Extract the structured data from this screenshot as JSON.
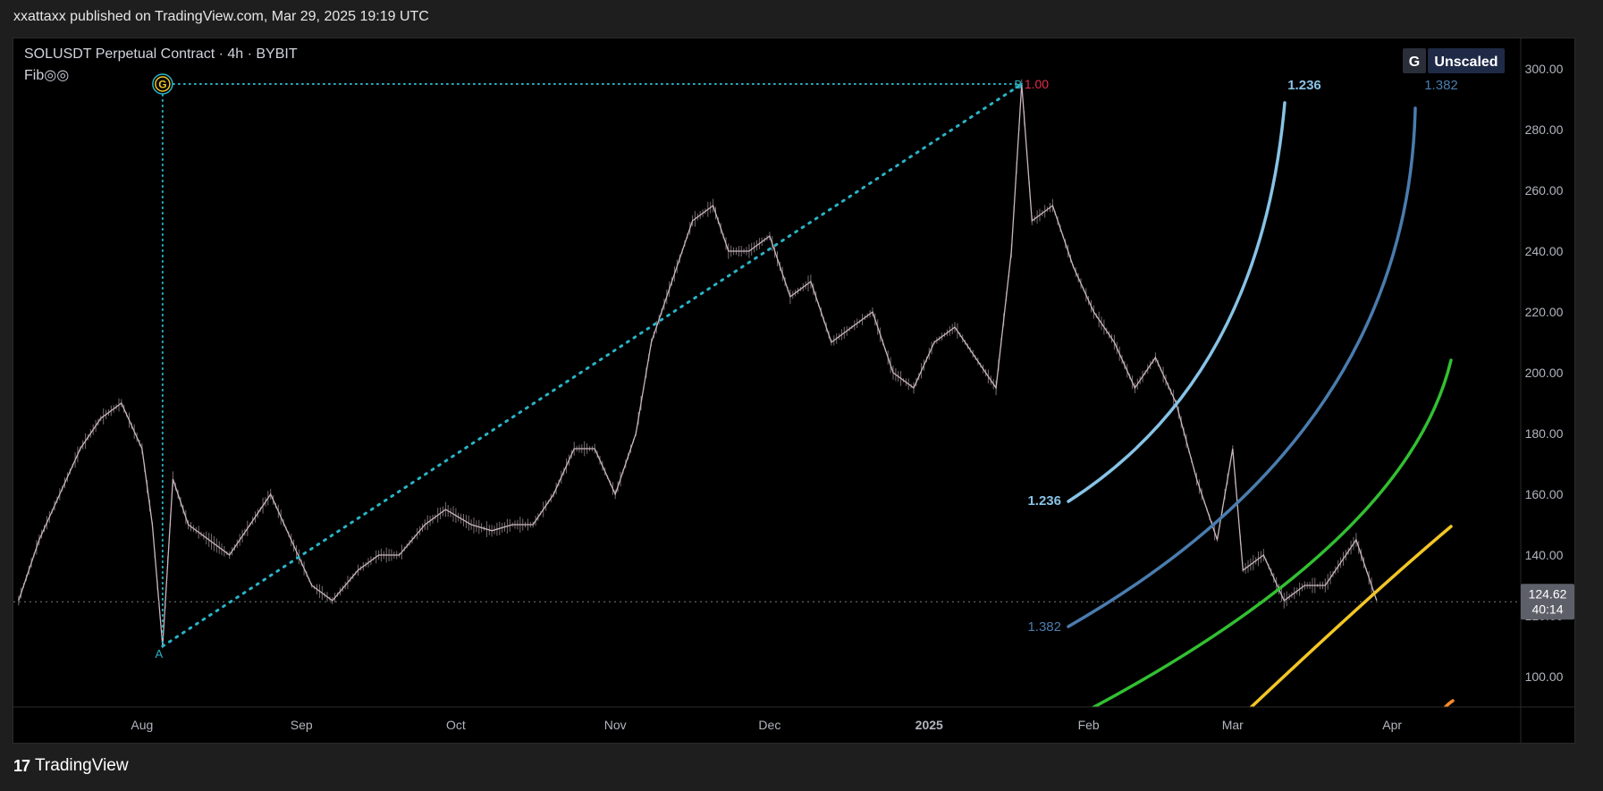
{
  "header": {
    "published": "xxattaxx published on TradingView.com, Mar 29, 2025 19:19 UTC"
  },
  "legend": {
    "symbol_line": "SOLUSDT Perpetual Contract · 4h · BYBIT",
    "indicator": "Fib◎◎"
  },
  "scale_buttons": {
    "g_label": "G",
    "unscaled_label": "Unscaled"
  },
  "footer": {
    "brand": "TradingView",
    "logo_glyph": "17"
  },
  "price_badge": {
    "value": "124.62",
    "countdown": "40:14"
  },
  "colors": {
    "background": "#000000",
    "candles": "#c9b6bf",
    "fib_trend": "#2ab3c6",
    "arc_1236": "#87c3e6",
    "arc_1382": "#4a7cae",
    "arc_green": "#32c032",
    "arc_yellow": "#f2c625",
    "arc_orange": "#f7892a",
    "label_red": "#e52d4c"
  },
  "fib_tool": {
    "points": [
      {
        "label": "A",
        "date": "2024-08-05",
        "price": 110
      },
      {
        "label": "B",
        "date": "2025-01-19",
        "price": 295
      }
    ],
    "anchor_label": "G",
    "b_level_text": "1.00",
    "arc_labels": [
      {
        "text": "1.236",
        "position": "top"
      },
      {
        "text": "1.382",
        "position": "top"
      },
      {
        "text": "1.236",
        "position": "bottom"
      },
      {
        "text": "1.382",
        "position": "bottom"
      }
    ]
  },
  "chart_data": {
    "type": "line",
    "series": [
      {
        "x": [
          "2024-07-08",
          "2024-07-12",
          "2024-07-16",
          "2024-07-20",
          "2024-07-24",
          "2024-07-28",
          "2024-08-01",
          "2024-08-03",
          "2024-08-05",
          "2024-08-07",
          "2024-08-10",
          "2024-08-14",
          "2024-08-18",
          "2024-08-22",
          "2024-08-26",
          "2024-08-30",
          "2024-09-03",
          "2024-09-07",
          "2024-09-12",
          "2024-09-16",
          "2024-09-20",
          "2024-09-25",
          "2024-09-29",
          "2024-10-04",
          "2024-10-08",
          "2024-10-12",
          "2024-10-16",
          "2024-10-20",
          "2024-10-24",
          "2024-10-28",
          "2024-11-01",
          "2024-11-05",
          "2024-11-08",
          "2024-11-12",
          "2024-11-16",
          "2024-11-20",
          "2024-11-23",
          "2024-11-27",
          "2024-12-01",
          "2024-12-05",
          "2024-12-09",
          "2024-12-13",
          "2024-12-17",
          "2024-12-21",
          "2024-12-25",
          "2024-12-29",
          "2025-01-02",
          "2025-01-06",
          "2025-01-10",
          "2025-01-14",
          "2025-01-17",
          "2025-01-19",
          "2025-01-21",
          "2025-01-25",
          "2025-01-29",
          "2025-02-02",
          "2025-02-06",
          "2025-02-10",
          "2025-02-14",
          "2025-02-18",
          "2025-02-22",
          "2025-02-26",
          "2025-03-01",
          "2025-03-03",
          "2025-03-07",
          "2025-03-11",
          "2025-03-15",
          "2025-03-19",
          "2025-03-23",
          "2025-03-25",
          "2025-03-27",
          "2025-03-29"
        ],
        "y": [
          125,
          145,
          160,
          175,
          185,
          190,
          175,
          150,
          110,
          165,
          150,
          145,
          140,
          150,
          160,
          145,
          130,
          125,
          135,
          140,
          140,
          150,
          155,
          150,
          148,
          150,
          150,
          160,
          175,
          175,
          160,
          180,
          210,
          230,
          250,
          255,
          240,
          240,
          245,
          225,
          230,
          210,
          215,
          220,
          200,
          195,
          210,
          215,
          205,
          195,
          240,
          295,
          250,
          255,
          235,
          220,
          210,
          195,
          205,
          190,
          165,
          145,
          175,
          135,
          140,
          125,
          130,
          130,
          140,
          145,
          135,
          125
        ]
      }
    ],
    "xlabel": "",
    "ylabel": "",
    "x_tick_labels": [
      "Aug",
      "Sep",
      "Oct",
      "Nov",
      "Dec",
      "2025",
      "Feb",
      "Mar",
      "Apr"
    ],
    "x_tick_dates": [
      "2024-08-01",
      "2024-09-01",
      "2024-10-01",
      "2024-11-01",
      "2024-12-01",
      "2025-01-01",
      "2025-02-01",
      "2025-03-01",
      "2025-04-01"
    ],
    "y_ticks": [
      100,
      120,
      140,
      160,
      180,
      200,
      220,
      240,
      260,
      280,
      300
    ],
    "y_tick_labels": [
      "100.00",
      "120.00",
      "140.00",
      "160.00",
      "180.00",
      "200.00",
      "220.00",
      "240.00",
      "260.00",
      "280.00",
      "300.00"
    ],
    "xlim": [
      "2024-07-07",
      "2025-04-26"
    ],
    "ylim": [
      90,
      310
    ],
    "last_price": 124.62,
    "grid": false
  }
}
